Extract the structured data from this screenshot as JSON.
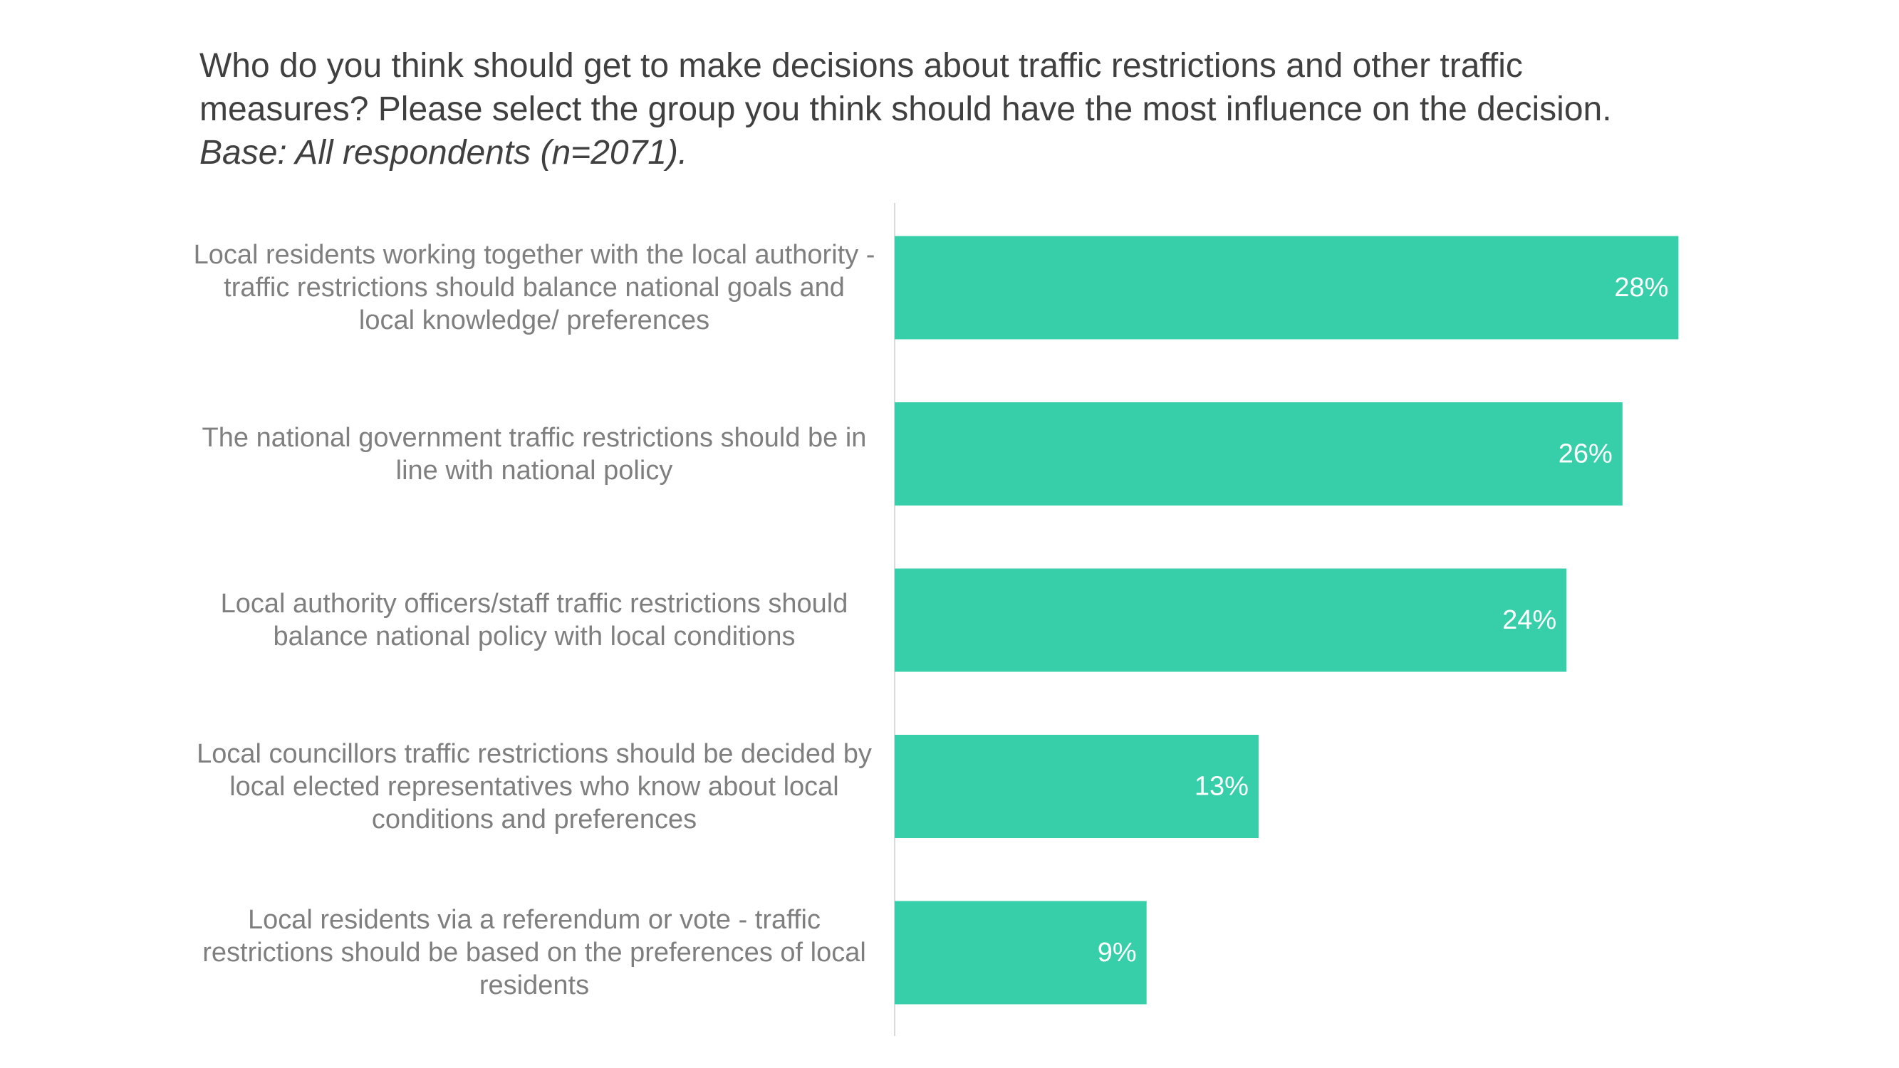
{
  "chart_data": {
    "type": "bar",
    "orientation": "horizontal",
    "title": "Who do you think should get to make decisions about traffic restrictions and other traffic measures? Please select the group you think should have the most influence on the decision.",
    "subtitle": "Base: All respondents (n=2071).",
    "categories": [
      "Local residents working together with the local authority - traffic restrictions should balance national goals and local knowledge/ preferences",
      "The national government traffic restrictions should be in line with national policy",
      "Local authority officers/staff traffic restrictions should balance national policy with local conditions",
      "Local councillors traffic restrictions should be decided by local elected representatives who know about local conditions and preferences",
      "Local residents via a referendum or vote - traffic restrictions should be based on the preferences of local residents"
    ],
    "values": [
      28,
      26,
      24,
      13,
      9
    ],
    "value_labels": [
      "28%",
      "26%",
      "24%",
      "13%",
      "9%"
    ],
    "xlim": [
      0,
      30
    ],
    "bar_color": "#37cfaa",
    "label_color": "#ffffff",
    "grid": false,
    "legend": "none"
  }
}
